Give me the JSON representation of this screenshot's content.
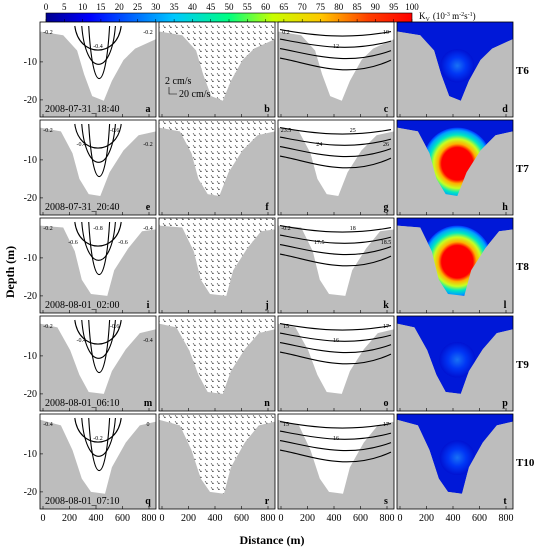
{
  "figure": {
    "y_axis_label": "Depth (m)",
    "x_axis_label": "Distance (m)",
    "colorbar": {
      "label": "K",
      "label_sub": "V",
      "label_units": "(10",
      "label_exp": "-3",
      "label_units2": " m",
      "label_exp2": "-2",
      "label_units3": "s",
      "label_exp3": "-1",
      "label_close": ")",
      "ticks": [
        "0",
        "5",
        "10",
        "15",
        "20",
        "25",
        "30",
        "35",
        "40",
        "45",
        "50",
        "55",
        "60",
        "65",
        "70",
        "75",
        "80",
        "85",
        "90",
        "95",
        "100"
      ],
      "min": 0,
      "max": 100,
      "colors": [
        "#00008f",
        "#0000ff",
        "#00c8ff",
        "#00ff80",
        "#c8ff00",
        "#ffc800",
        "#ff4000",
        "#ff0000"
      ]
    },
    "x_ticks": [
      "0",
      "200",
      "400",
      "600",
      "800"
    ],
    "y_ticks": [
      "-10",
      "-20"
    ],
    "scale_bar": {
      "vertical": "2 cm/s",
      "horizontal": "20 cm/s"
    },
    "rows": [
      {
        "time_label": "T6",
        "timestamp": "2008-07-31_18:40",
        "letters": [
          "a",
          "b",
          "c",
          "d"
        ],
        "contour_labels": [
          "-0.2",
          "-0.4",
          "-0.2",
          "0.2",
          "12",
          "19"
        ],
        "kv_peak": 15
      },
      {
        "time_label": "T7",
        "timestamp": "2008-07-31_20:40",
        "letters": [
          "e",
          "f",
          "g",
          "h"
        ],
        "contour_labels": [
          "-0.2",
          "-0.4",
          "-0.6",
          "-0.2",
          "23.5",
          "24",
          "25",
          "26"
        ],
        "kv_peak": 100
      },
      {
        "time_label": "T8",
        "timestamp": "2008-08-01_02:00",
        "letters": [
          "i",
          "j",
          "k",
          "l"
        ],
        "contour_labels": [
          "-0.2",
          "-0.6",
          "-0.8",
          "-0.6",
          "-0.4",
          "-0.2",
          "17.5",
          "18",
          "18.5"
        ],
        "kv_peak": 100
      },
      {
        "time_label": "T9",
        "timestamp": "2008-08-01_06:10",
        "letters": [
          "m",
          "n",
          "o",
          "p"
        ],
        "contour_labels": [
          "-0.2",
          "-0.4",
          "-0.6",
          "-0.4",
          "15",
          "16",
          "17"
        ],
        "kv_peak": 20
      },
      {
        "time_label": "T10",
        "timestamp": "2008-08-01_07:10",
        "letters": [
          "q",
          "r",
          "s",
          "t"
        ],
        "contour_labels": [
          "-0.4",
          "-0.2",
          "0",
          "15",
          "16",
          "17"
        ],
        "kv_peak": 18
      }
    ]
  },
  "chart_data": {
    "type": "heatmap",
    "title": "",
    "xlabel": "Distance (m)",
    "ylabel": "Depth (m)",
    "xlim": [
      0,
      850
    ],
    "ylim": [
      -25,
      0
    ],
    "x_ticks": [
      0,
      200,
      400,
      600,
      800
    ],
    "y_ticks": [
      -10,
      -20
    ],
    "colorbar_range": [
      0,
      100
    ],
    "panels_per_row": [
      "velocity contours",
      "velocity vectors",
      "temperature contours",
      "Kv colormap"
    ],
    "rows": [
      "T6",
      "T7",
      "T8",
      "T9",
      "T10"
    ],
    "kv_core_peak": [
      15,
      100,
      100,
      20,
      18
    ]
  }
}
